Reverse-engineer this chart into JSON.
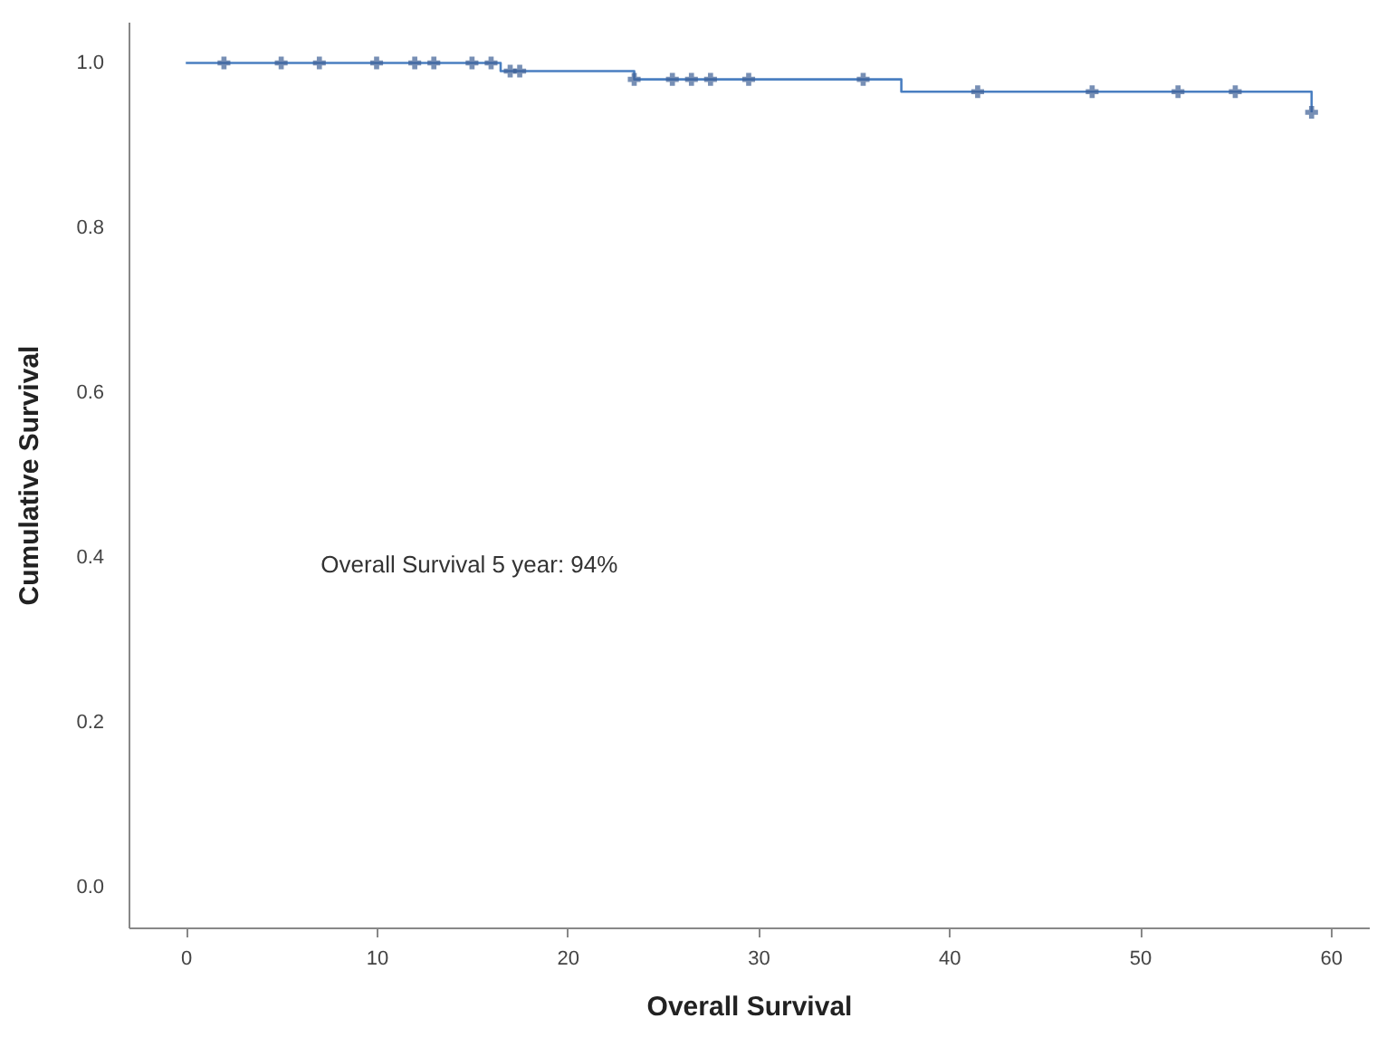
{
  "chart_data": {
    "type": "step",
    "xlabel": "Overall Survival",
    "ylabel": "Cumulative Survival",
    "annotations": [
      "Overall Survival 5 year: 94%"
    ],
    "xlim": [
      -3,
      62
    ],
    "xticks": [
      0,
      10,
      20,
      30,
      40,
      50,
      60
    ],
    "ylim": [
      -0.05,
      1.05
    ],
    "yticks": [
      {
        "value": 0,
        "label": "0.0"
      },
      {
        "value": 0.2,
        "label": "0.2"
      },
      {
        "value": 0.4,
        "label": "0.4"
      },
      {
        "value": 0.6,
        "label": "0.6"
      },
      {
        "value": 0.8,
        "label": "0.8"
      },
      {
        "value": 1,
        "label": "1.0"
      }
    ],
    "grid": false,
    "series": [
      {
        "color": "#4a7fc1",
        "marker": "none",
        "x": [
          0,
          16.5,
          23.5,
          37.5,
          59
        ],
        "values": [
          1,
          0.99,
          0.98,
          0.965,
          0.94
        ]
      },
      {
        "type": "scatter",
        "color": "#3d5f95",
        "marker": "cross",
        "x": [
          2,
          5,
          7,
          10,
          12,
          13,
          15,
          16,
          17,
          17.5,
          23.5,
          25.5,
          26.5,
          27.5,
          29.5,
          35.5,
          41.5,
          47.5,
          52,
          55,
          59
        ],
        "values": [
          1,
          1,
          1,
          1,
          1,
          1,
          1,
          1,
          0.99,
          0.99,
          0.98,
          0.98,
          0.98,
          0.98,
          0.98,
          0.98,
          0.965,
          0.965,
          0.965,
          0.965,
          0.94
        ]
      }
    ]
  }
}
